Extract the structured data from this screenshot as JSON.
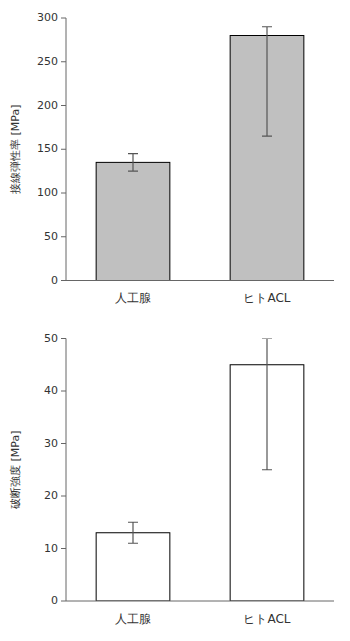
{
  "chart_data": [
    {
      "type": "bar",
      "ylabel": "接線弾性率 [MPa]",
      "categories": [
        "人工腺",
        "ヒトACL"
      ],
      "values": [
        135,
        280
      ],
      "errors_minus": [
        10,
        115
      ],
      "errors_plus": [
        10,
        10
      ],
      "color": "#c0c0c0",
      "ylim": [
        0,
        300
      ],
      "yticks": [
        0,
        50,
        100,
        150,
        200,
        250,
        300
      ],
      "grid": false
    },
    {
      "type": "bar",
      "ylabel": "破断強度 [MPa]",
      "categories": [
        "人工腺",
        "ヒトACL"
      ],
      "values": [
        13,
        45
      ],
      "errors_minus": [
        2,
        20
      ],
      "errors_plus": [
        2,
        5
      ],
      "color": "#ffffff",
      "ylim": [
        0,
        50
      ],
      "yticks": [
        0,
        10,
        20,
        30,
        40,
        50
      ],
      "grid": false
    }
  ]
}
